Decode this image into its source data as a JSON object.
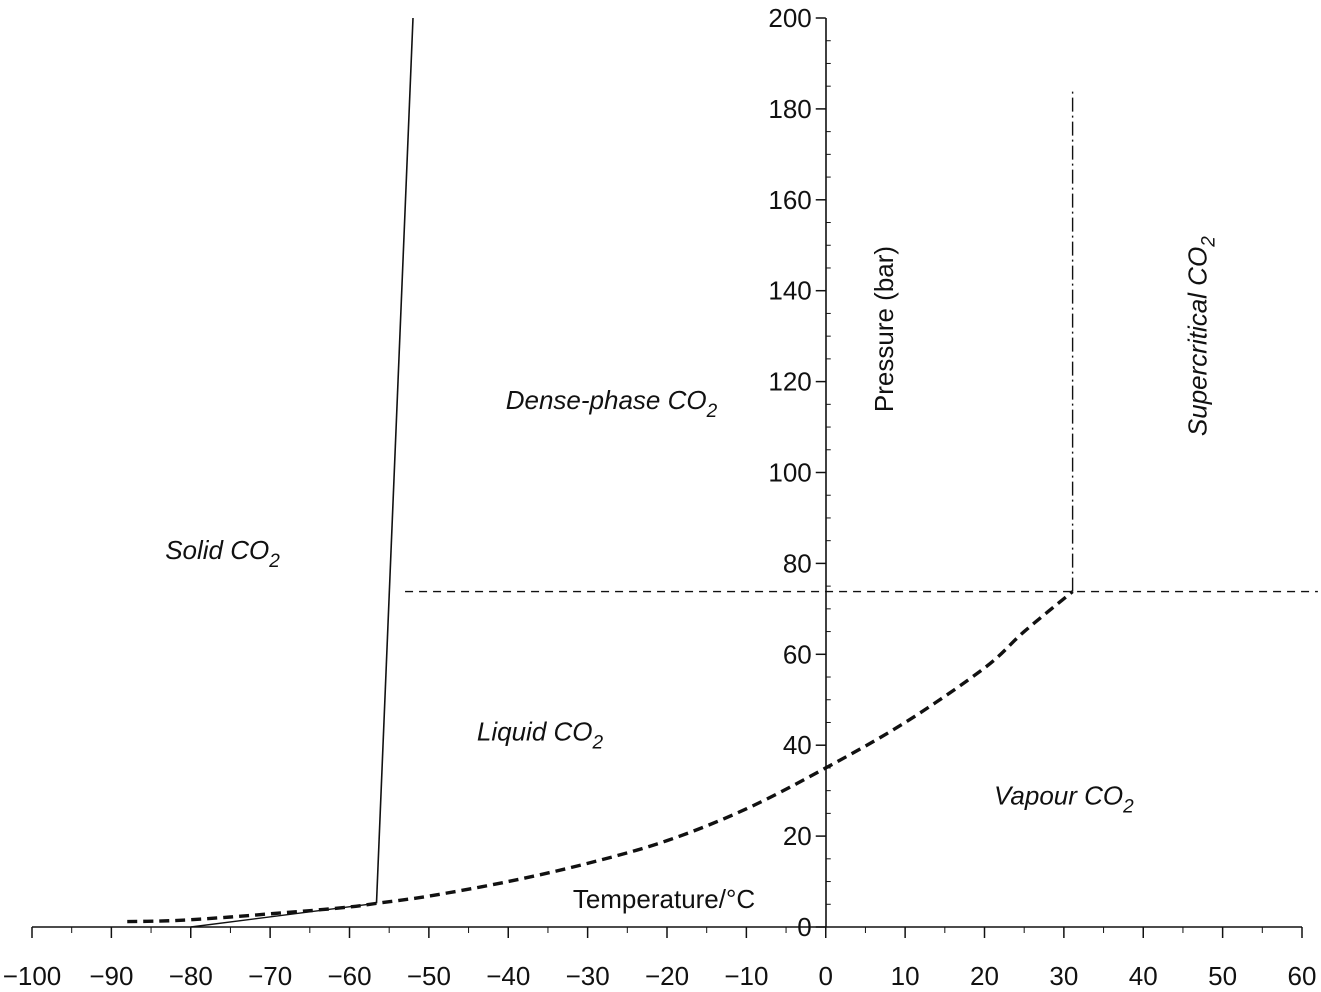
{
  "chart_data": {
    "type": "line",
    "title": "",
    "xlabel": "Temperature/°C",
    "ylabel": "Pressure (bar)",
    "xlim": [
      -100,
      60
    ],
    "ylim": [
      0,
      200
    ],
    "x_ticks": [
      "−100",
      "−90",
      "−80",
      "−70",
      "−60",
      "−50",
      "−40",
      "−30",
      "−20",
      "−10",
      "0",
      "10",
      "20",
      "30",
      "40",
      "50",
      "60"
    ],
    "y_ticks": [
      "0",
      "20",
      "40",
      "60",
      "80",
      "100",
      "120",
      "140",
      "160",
      "180",
      "200"
    ],
    "grid": false,
    "series": [
      {
        "style": "thin-solid",
        "x": [
          -80,
          -56.6
        ],
        "y": [
          0,
          5.2
        ]
      },
      {
        "style": "solid",
        "x": [
          -56.6,
          -52
        ],
        "y": [
          5.2,
          200
        ]
      },
      {
        "style": "bold-dashed",
        "x": [
          -88,
          -84,
          -80,
          -75,
          -70,
          -65,
          -60,
          -56.6,
          -50,
          -40,
          -30,
          -20,
          -10,
          0,
          10,
          20,
          25,
          31.1
        ],
        "y": [
          1.2,
          1.3,
          1.6,
          2.2,
          2.9,
          3.6,
          4.4,
          5.2,
          6.8,
          10,
          14,
          19,
          26,
          35,
          45,
          57,
          65,
          73.8
        ]
      },
      {
        "style": "thin-dashed",
        "x": [
          -53,
          62
        ],
        "y": [
          73.8,
          73.8
        ]
      },
      {
        "style": "dash-dot",
        "x": [
          31.1,
          31.1
        ],
        "y": [
          73.8,
          184
        ]
      }
    ],
    "annotations": [
      {
        "text": "Solid CO",
        "sub": "2",
        "x": -76,
        "y": 81,
        "italic": true
      },
      {
        "text": "Dense-phase CO",
        "sub": "2",
        "x": -27,
        "y": 114,
        "italic": true
      },
      {
        "text": "Liquid CO",
        "sub": "2",
        "x": -36,
        "y": 41,
        "italic": true
      },
      {
        "text": "Vapour CO",
        "sub": "2",
        "x": 30,
        "y": 27,
        "italic": true
      },
      {
        "text": "Supercritical CO",
        "sub": "2",
        "x": 48,
        "y": 130,
        "italic": true,
        "rotate": -90
      }
    ]
  }
}
